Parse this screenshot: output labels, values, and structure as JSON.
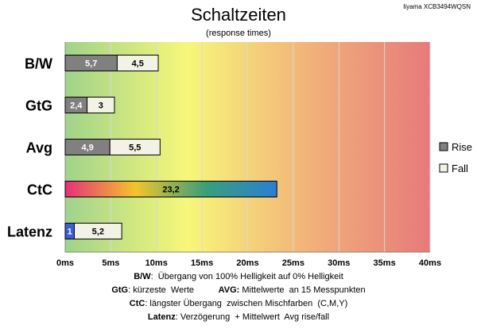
{
  "title": "Schaltzeiten",
  "subtitle": "(response times)",
  "model": "Iiyama XCB3494WQSN",
  "chart_data": {
    "type": "bar",
    "orientation": "horizontal",
    "stacked": true,
    "categories": [
      "B/W",
      "GtG",
      "Avg",
      "CtC",
      "Latenz"
    ],
    "series": [
      {
        "name": "Rise",
        "values": [
          5.7,
          2.4,
          4.9,
          23.2,
          1
        ],
        "color": "#808080"
      },
      {
        "name": "Fall",
        "values": [
          4.5,
          3,
          5.5,
          null,
          5.2
        ],
        "color": "#f2f2e6"
      }
    ],
    "data_labels": [
      [
        "5,7",
        "4,5"
      ],
      [
        "2,4",
        "3"
      ],
      [
        "4,9",
        "5,5"
      ],
      [
        "23,2",
        null
      ],
      [
        "1",
        "5,2"
      ]
    ],
    "x_ticks": [
      "0ms",
      "5ms",
      "10ms",
      "15ms",
      "20ms",
      "25ms",
      "30ms",
      "35ms",
      "40ms"
    ],
    "xlim": [
      0,
      40
    ],
    "grid": true,
    "legend_position": "right",
    "special_colors": {
      "ctc_gradient": [
        "#e6307a",
        "#f2c52b",
        "#3a9e7a",
        "#2a7fd4"
      ],
      "latenz_rise": "#3a5fd9"
    },
    "background_gradient": [
      "#9fd38a",
      "#f7f77a",
      "#f2b27a",
      "#e67a7a"
    ]
  },
  "footnotes": [
    {
      "parts": [
        {
          "b": "B/W"
        },
        {
          "t": ":  Übergang von 100% Helligkeit auf 0% Helligkeit"
        }
      ]
    },
    {
      "parts": [
        {
          "b": "GtG"
        },
        {
          "t": ": kürzeste  Werte          "
        },
        {
          "b": "AVG:"
        },
        {
          "t": " Mittelwerte  an 15 Messpunkten"
        }
      ]
    },
    {
      "parts": [
        {
          "b": "CtC"
        },
        {
          "t": ": längster Übergang  zwischen Mischfarben  (C,M,Y)"
        }
      ]
    },
    {
      "parts": [
        {
          "b": "Latenz"
        },
        {
          "t": ": Verzögerung  + Mittelwert  Avg rise/fall"
        }
      ]
    }
  ]
}
